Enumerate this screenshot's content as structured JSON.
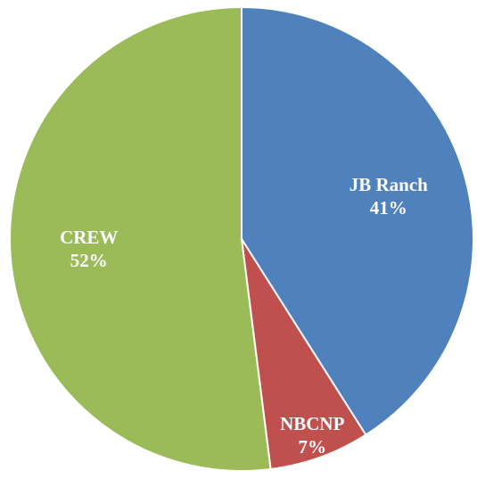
{
  "chart_data": {
    "type": "pie",
    "title": "",
    "slices": [
      {
        "name": "JB Ranch",
        "percent_label": "41%",
        "value": 41,
        "color": "#4F81BD"
      },
      {
        "name": "NBCNP",
        "percent_label": "7%",
        "value": 7,
        "color": "#C0504D"
      },
      {
        "name": "CREW",
        "percent_label": "52%",
        "value": 52,
        "color": "#9BBB59"
      }
    ],
    "start_angle_deg": 0,
    "direction": "clockwise",
    "labels_inside": true,
    "legend": "none"
  }
}
